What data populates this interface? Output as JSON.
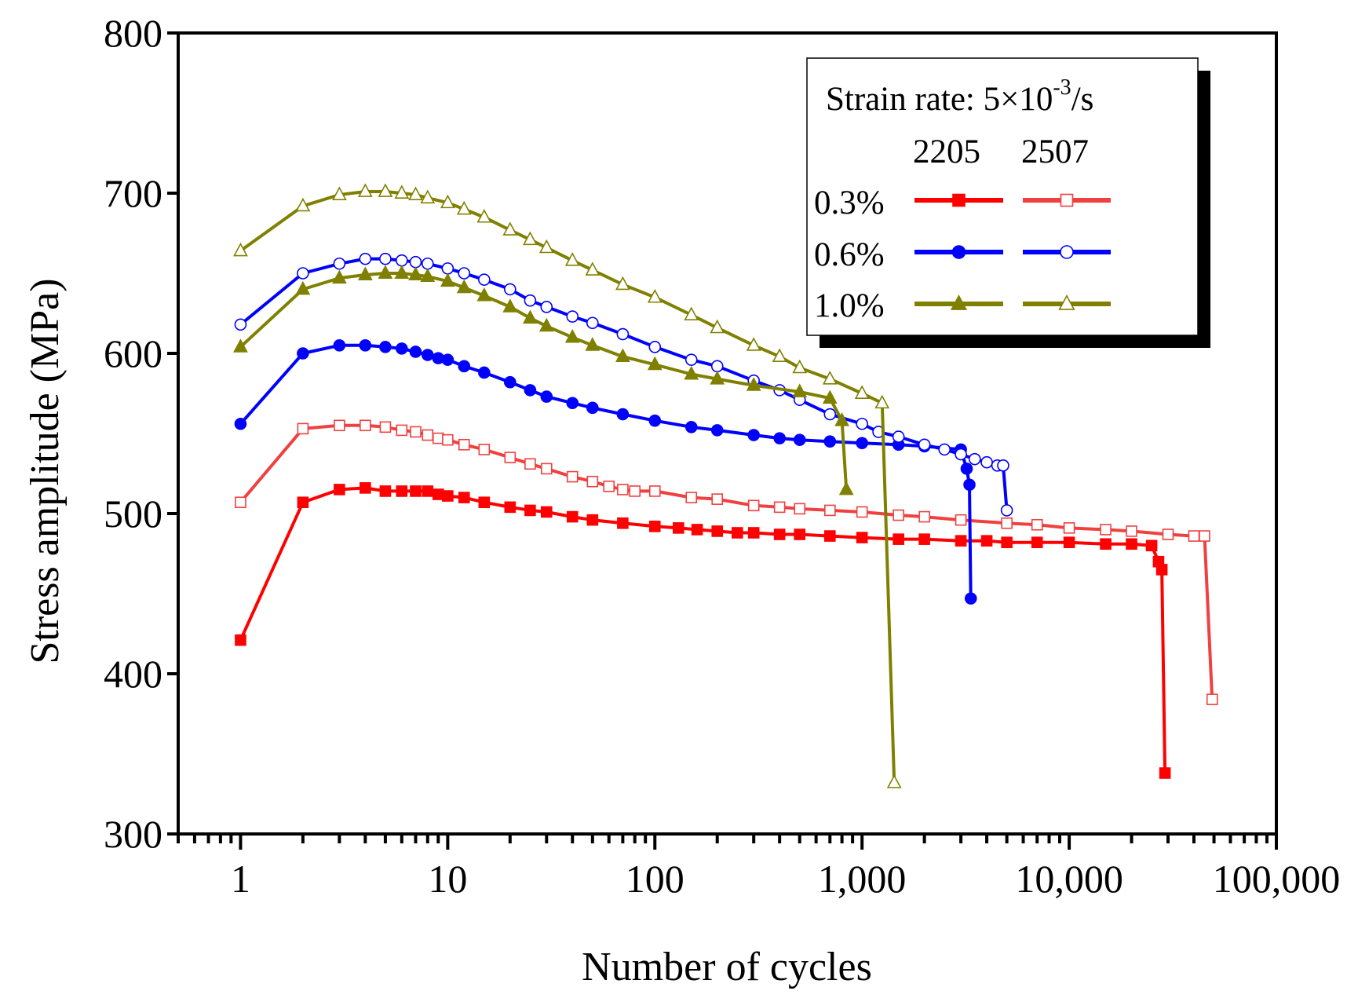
{
  "chart_data": {
    "type": "line",
    "title": "",
    "xlabel": "Number of cycles",
    "ylabel": "Stress amplitude (MPa)",
    "xscale": "log",
    "xlim": [
      0.5,
      100000
    ],
    "ylim": [
      300,
      800
    ],
    "grid": false,
    "x_ticks": [
      1,
      10,
      100,
      1000,
      10000,
      100000
    ],
    "x_tick_labels": [
      "1",
      "10",
      "100",
      "1,000",
      "10,000",
      "100,000"
    ],
    "y_ticks": [
      300,
      400,
      500,
      600,
      700,
      800
    ],
    "y_tick_labels": [
      "300",
      "400",
      "500",
      "600",
      "700",
      "800"
    ],
    "legend": {
      "placement": "top-right",
      "title_prefix": "Strain rate: 5×10",
      "title_exp": "-3",
      "title_suffix": "/s",
      "columns": [
        "2205",
        "2507"
      ],
      "rows": [
        "0.3%",
        "0.6%",
        "1.0%"
      ]
    },
    "series": [
      {
        "name": "2205 0.3%",
        "material": "2205",
        "strain": "0.3%",
        "color": "#ff0000",
        "marker": "square",
        "filled": true,
        "x": [
          1,
          2,
          3,
          4,
          5,
          6,
          7,
          8,
          9,
          10,
          12,
          15,
          20,
          25,
          30,
          40,
          50,
          70,
          100,
          130,
          160,
          200,
          250,
          300,
          400,
          500,
          700,
          1000,
          1500,
          2000,
          3000,
          4000,
          5000,
          7000,
          10000,
          15000,
          20000,
          25000,
          27000,
          28000,
          29000
        ],
        "y": [
          421,
          507,
          515,
          516,
          514,
          514,
          514,
          514,
          512,
          511,
          510,
          507,
          504,
          502,
          501,
          498,
          496,
          494,
          492,
          491,
          490,
          489,
          488,
          488,
          487,
          487,
          486,
          485,
          484,
          484,
          483,
          483,
          482,
          482,
          482,
          481,
          481,
          480,
          470,
          465,
          338
        ]
      },
      {
        "name": "2507 0.3%",
        "material": "2507",
        "strain": "0.3%",
        "color": "#f04040",
        "marker": "square",
        "filled": false,
        "x": [
          1,
          2,
          3,
          4,
          5,
          6,
          7,
          8,
          9,
          10,
          12,
          15,
          20,
          25,
          30,
          40,
          50,
          60,
          70,
          80,
          100,
          150,
          200,
          300,
          400,
          500,
          700,
          1000,
          1500,
          2000,
          3000,
          5000,
          7000,
          10000,
          15000,
          20000,
          30000,
          40000,
          45000,
          49000
        ],
        "y": [
          507,
          553,
          555,
          555,
          554,
          552,
          551,
          549,
          547,
          546,
          543,
          540,
          535,
          531,
          528,
          523,
          520,
          517,
          515,
          514,
          514,
          510,
          509,
          505,
          504,
          503,
          502,
          501,
          499,
          498,
          496,
          494,
          493,
          491,
          490,
          489,
          487,
          486,
          486,
          384
        ]
      },
      {
        "name": "2205 0.6%",
        "material": "2205",
        "strain": "0.6%",
        "color": "#0000ff",
        "marker": "circle",
        "filled": true,
        "x": [
          1,
          2,
          3,
          4,
          5,
          6,
          7,
          8,
          9,
          10,
          12,
          15,
          20,
          25,
          30,
          40,
          50,
          70,
          100,
          150,
          200,
          300,
          400,
          500,
          700,
          1000,
          1500,
          2000,
          3000,
          3200,
          3300,
          3350
        ],
        "y": [
          556,
          600,
          605,
          605,
          604,
          603,
          601,
          599,
          597,
          596,
          592,
          588,
          582,
          577,
          573,
          569,
          566,
          562,
          558,
          554,
          552,
          549,
          547,
          546,
          545,
          544,
          543,
          542,
          540,
          528,
          518,
          447
        ]
      },
      {
        "name": "2507 0.6%",
        "material": "2507",
        "strain": "0.6%",
        "color": "#0000ff",
        "marker": "circle",
        "filled": false,
        "x": [
          1,
          2,
          3,
          4,
          5,
          6,
          7,
          8,
          10,
          12,
          15,
          20,
          25,
          30,
          40,
          50,
          70,
          100,
          150,
          200,
          300,
          400,
          500,
          700,
          1000,
          1200,
          1500,
          2000,
          2500,
          3000,
          3500,
          4000,
          4500,
          4800,
          5000
        ],
        "y": [
          618,
          650,
          656,
          659,
          659,
          658,
          657,
          656,
          653,
          650,
          646,
          640,
          633,
          629,
          623,
          619,
          612,
          604,
          596,
          592,
          583,
          577,
          571,
          562,
          556,
          551,
          548,
          543,
          540,
          537,
          534,
          532,
          530,
          530,
          502
        ]
      },
      {
        "name": "2205 1.0%",
        "material": "2205",
        "strain": "1.0%",
        "color": "#808000",
        "marker": "triangle",
        "filled": true,
        "x": [
          1,
          2,
          3,
          4,
          5,
          6,
          7,
          8,
          10,
          12,
          15,
          20,
          25,
          30,
          40,
          50,
          70,
          100,
          150,
          200,
          300,
          500,
          700,
          800,
          840
        ],
        "y": [
          604,
          640,
          647,
          649,
          650,
          650,
          649,
          648,
          645,
          641,
          636,
          629,
          622,
          617,
          610,
          605,
          598,
          593,
          587,
          584,
          580,
          576,
          572,
          558,
          515
        ]
      },
      {
        "name": "2507 1.0%",
        "material": "2507",
        "strain": "1.0%",
        "color": "#808000",
        "marker": "triangle",
        "filled": false,
        "x": [
          1,
          2,
          3,
          4,
          5,
          6,
          7,
          8,
          10,
          12,
          15,
          20,
          25,
          30,
          40,
          50,
          70,
          100,
          150,
          200,
          300,
          400,
          500,
          700,
          1000,
          1250,
          1430
        ],
        "y": [
          664,
          692,
          699,
          701,
          701,
          700,
          699,
          697,
          694,
          690,
          685,
          677,
          671,
          666,
          658,
          652,
          643,
          635,
          624,
          616,
          605,
          598,
          591,
          584,
          575,
          569,
          332
        ]
      }
    ]
  }
}
